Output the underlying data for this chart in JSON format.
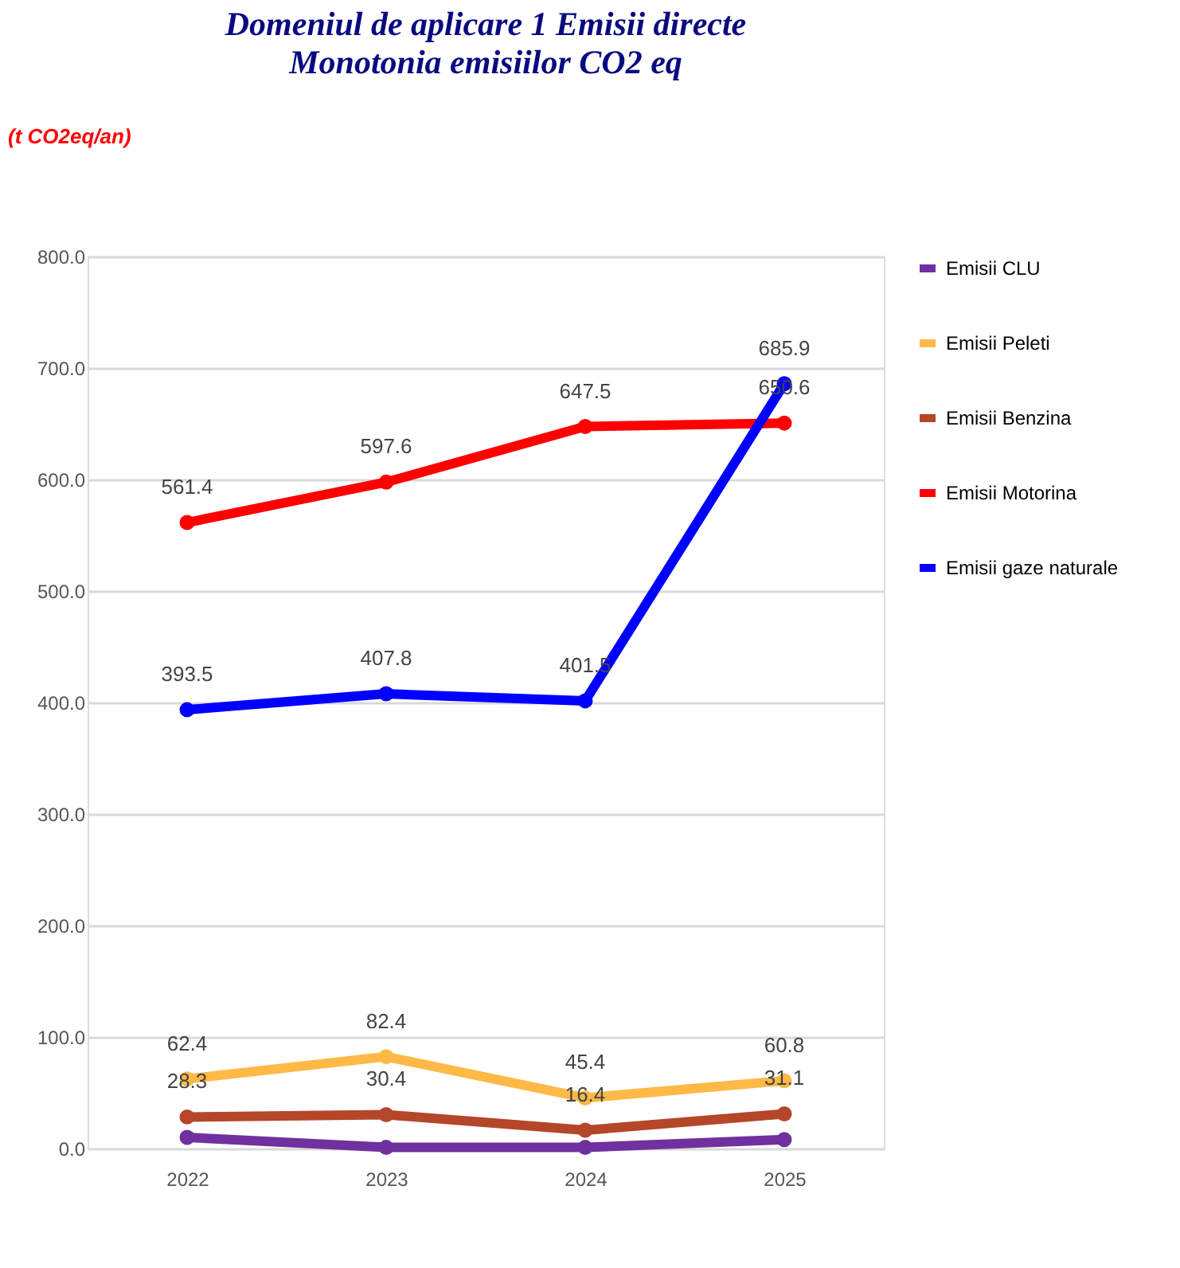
{
  "chart_data": {
    "type": "line",
    "title": "Domeniul de aplicare 1 Emisii directe",
    "subtitle": "Monotonia  emisiilor CO2 eq",
    "annotations": [
      "(t CO2eq/an)"
    ],
    "categories": [
      "2022",
      "2023",
      "2024",
      "2025"
    ],
    "series": [
      {
        "name": "Emisii CLU",
        "color": "#7030a0",
        "values": [
          10,
          1,
          1,
          8
        ]
      },
      {
        "name": "Emisii Peleti",
        "color": "#ffb946",
        "values": [
          62.4,
          82.4,
          45.4,
          60.8
        ],
        "value_labels": [
          "62.4",
          "82.4",
          "45.4",
          "60.8"
        ]
      },
      {
        "name": "Emisii Benzina",
        "color": "#b5462a",
        "values": [
          28.3,
          30.4,
          16.4,
          31.1
        ],
        "value_labels": [
          "28.3",
          "30.4",
          "16.4",
          "31.1"
        ]
      },
      {
        "name": "Emisii Motorina",
        "color": "#ff0000",
        "values": [
          561.4,
          597.6,
          647.5,
          650.6
        ],
        "value_labels": [
          "561.4",
          "597.6",
          "647.5",
          "650.6"
        ]
      },
      {
        "name": "Emisii gaze naturale",
        "color": "#0000ff",
        "values": [
          393.5,
          407.8,
          401.5,
          685.9
        ],
        "value_labels": [
          "393.5",
          "407.8",
          "401.5",
          "685.9"
        ]
      }
    ],
    "ylim": [
      0,
      800
    ],
    "yticks": [
      {
        "value": 0,
        "label": "0.0"
      },
      {
        "value": 100,
        "label": "100.0"
      },
      {
        "value": 200,
        "label": "200.0"
      },
      {
        "value": 300,
        "label": "300.0"
      },
      {
        "value": 400,
        "label": "400.0"
      },
      {
        "value": 500,
        "label": "500.0"
      },
      {
        "value": 600,
        "label": "600.0"
      },
      {
        "value": 700,
        "label": "700.0"
      },
      {
        "value": 800,
        "label": "800.0"
      }
    ],
    "grid": "y",
    "legend": "right",
    "marker": "circle",
    "line_style": "solid"
  }
}
